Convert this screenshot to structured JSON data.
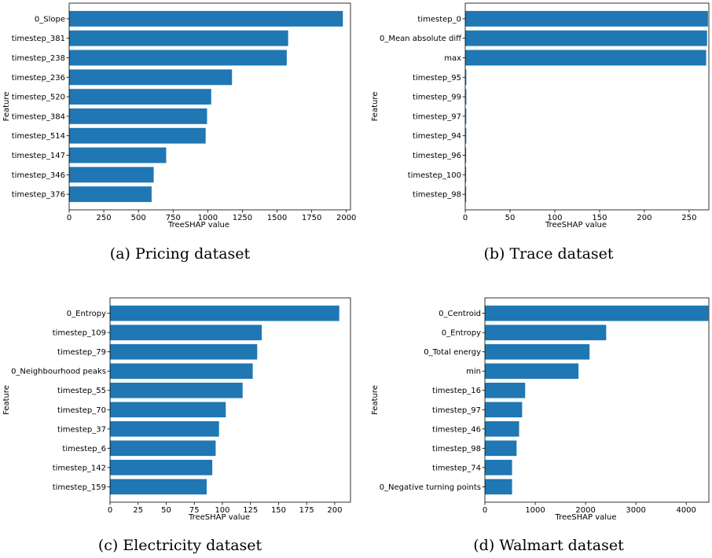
{
  "chart_data": [
    {
      "type": "bar",
      "orientation": "horizontal",
      "caption": "(a) Pricing dataset",
      "xlabel": "TreeSHAP value",
      "ylabel": "Feature",
      "xlim": [
        0,
        2030
      ],
      "xticks": [
        0,
        250,
        500,
        750,
        1000,
        1250,
        1500,
        1750,
        2000
      ],
      "categories": [
        "0_Slope",
        "timestep_381",
        "timestep_238",
        "timestep_236",
        "timestep_520",
        "timestep_384",
        "timestep_514",
        "timestep_147",
        "timestep_346",
        "timestep_376"
      ],
      "values": [
        1975,
        1580,
        1570,
        1175,
        1025,
        995,
        985,
        700,
        610,
        595
      ],
      "color": "#1f77b4"
    },
    {
      "type": "bar",
      "orientation": "horizontal",
      "caption": "(b) Trace dataset",
      "xlabel": "TreeSHAP value",
      "ylabel": "Feature",
      "xlim": [
        0,
        272
      ],
      "xticks": [
        0,
        50,
        100,
        150,
        200,
        250
      ],
      "categories": [
        "timestep_0",
        "0_Mean absolute diff",
        "max",
        "timestep_95",
        "timestep_99",
        "timestep_97",
        "timestep_94",
        "timestep_96",
        "timestep_100",
        "timestep_98"
      ],
      "values": [
        271,
        270,
        269,
        1.2,
        1.2,
        1.1,
        1.1,
        1.0,
        1.0,
        1.0
      ],
      "color": "#1f77b4"
    },
    {
      "type": "bar",
      "orientation": "horizontal",
      "caption": "(c) Electricity dataset",
      "xlabel": "TreeSHAP value",
      "ylabel": "Feature",
      "xlim": [
        0,
        214
      ],
      "xticks": [
        0,
        25,
        50,
        75,
        100,
        125,
        150,
        175,
        200
      ],
      "categories": [
        "0_Entropy",
        "timestep_109",
        "timestep_79",
        "0_Neighbourhood peaks",
        "timestep_55",
        "timestep_70",
        "timestep_37",
        "timestep_6",
        "timestep_142",
        "timestep_159"
      ],
      "values": [
        204,
        135,
        131,
        127,
        118,
        103,
        97,
        94,
        91,
        86
      ],
      "color": "#1f77b4"
    },
    {
      "type": "bar",
      "orientation": "horizontal",
      "caption": "(d) Walmart dataset",
      "xlabel": "TreeSHAP value",
      "ylabel": "Feature",
      "xlim": [
        0,
        4450
      ],
      "xticks": [
        0,
        1000,
        2000,
        3000,
        4000
      ],
      "categories": [
        "0_Centroid",
        "0_Entropy",
        "0_Total energy",
        "min",
        "timestep_16",
        "timestep_97",
        "timestep_46",
        "timestep_98",
        "timestep_74",
        "0_Negative turning points"
      ],
      "values": [
        4440,
        2410,
        2080,
        1860,
        800,
        740,
        680,
        630,
        540,
        540
      ],
      "color": "#1f77b4"
    }
  ]
}
